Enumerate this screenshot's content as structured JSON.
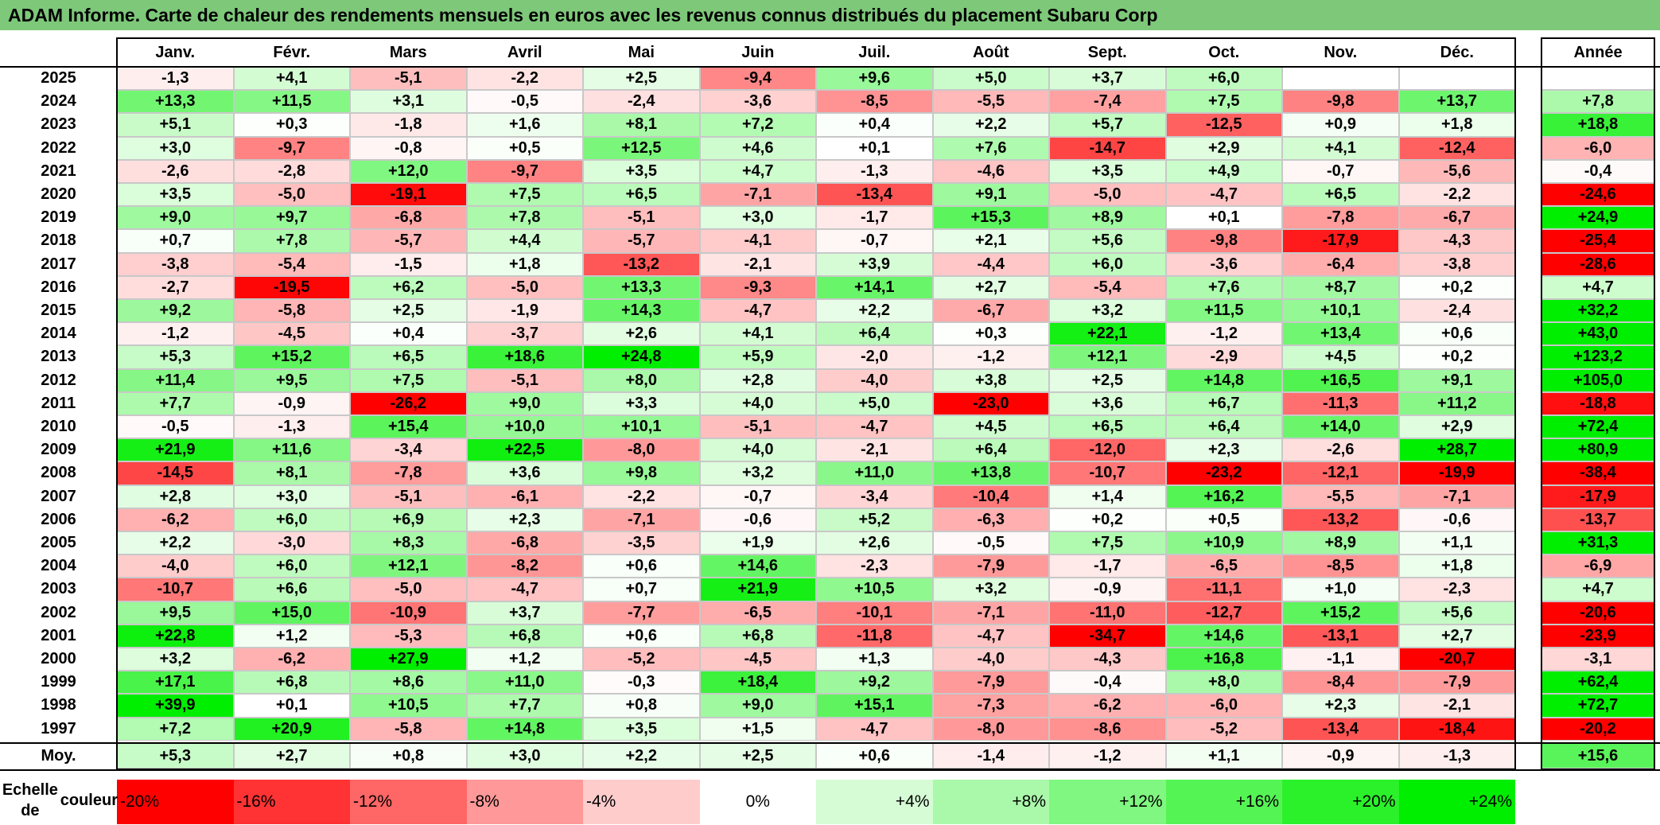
{
  "title": "ADAM Informe. Carte de chaleur des rendements mensuels en euros avec les revenus connus distribués du placement Subaru Corp",
  "chart_data": {
    "type": "heatmap",
    "months": [
      "Janv.",
      "Févr.",
      "Mars",
      "Avril",
      "Mai",
      "Juin",
      "Juil.",
      "Août",
      "Sept.",
      "Oct.",
      "Nov.",
      "Déc."
    ],
    "year_header": "Année",
    "rows": [
      {
        "year": "2025",
        "m": [
          "-1,3",
          "+4,1",
          "-5,1",
          "-2,2",
          "+2,5",
          "-9,4",
          "+9,6",
          "+5,0",
          "+3,7",
          "+6,0",
          "",
          ""
        ],
        "y": ""
      },
      {
        "year": "2024",
        "m": [
          "+13,3",
          "+11,5",
          "+3,1",
          "-0,5",
          "-2,4",
          "-3,6",
          "-8,5",
          "-5,5",
          "-7,4",
          "+7,5",
          "-9,8",
          "+13,7"
        ],
        "y": "+7,8"
      },
      {
        "year": "2023",
        "m": [
          "+5,1",
          "+0,3",
          "-1,8",
          "+1,6",
          "+8,1",
          "+7,2",
          "+0,4",
          "+2,2",
          "+5,7",
          "-12,5",
          "+0,9",
          "+1,8"
        ],
        "y": "+18,8"
      },
      {
        "year": "2022",
        "m": [
          "+3,0",
          "-9,7",
          "-0,8",
          "+0,5",
          "+12,5",
          "+4,6",
          "+0,1",
          "+7,6",
          "-14,7",
          "+2,9",
          "+4,1",
          "-12,4"
        ],
        "y": "-6,0"
      },
      {
        "year": "2021",
        "m": [
          "-2,6",
          "-2,8",
          "+12,0",
          "-9,7",
          "+3,5",
          "+4,7",
          "-1,3",
          "-4,6",
          "+3,5",
          "+4,9",
          "-0,7",
          "-5,6"
        ],
        "y": "-0,4"
      },
      {
        "year": "2020",
        "m": [
          "+3,5",
          "-5,0",
          "-19,1",
          "+7,5",
          "+6,5",
          "-7,1",
          "-13,4",
          "+9,1",
          "-5,0",
          "-4,7",
          "+6,5",
          "-2,2"
        ],
        "y": "-24,6"
      },
      {
        "year": "2019",
        "m": [
          "+9,0",
          "+9,7",
          "-6,8",
          "+7,8",
          "-5,1",
          "+3,0",
          "-1,7",
          "+15,3",
          "+8,9",
          "+0,1",
          "-7,8",
          "-6,7"
        ],
        "y": "+24,9"
      },
      {
        "year": "2018",
        "m": [
          "+0,7",
          "+7,8",
          "-5,7",
          "+4,4",
          "-5,7",
          "-4,1",
          "-0,7",
          "+2,1",
          "+5,6",
          "-9,8",
          "-17,9",
          "-4,3"
        ],
        "y": "-25,4"
      },
      {
        "year": "2017",
        "m": [
          "-3,8",
          "-5,4",
          "-1,5",
          "+1,8",
          "-13,2",
          "-2,1",
          "+3,9",
          "-4,4",
          "+6,0",
          "-3,6",
          "-6,4",
          "-3,8"
        ],
        "y": "-28,6"
      },
      {
        "year": "2016",
        "m": [
          "-2,7",
          "-19,5",
          "+6,2",
          "-5,0",
          "+13,3",
          "-9,3",
          "+14,1",
          "+2,7",
          "-5,4",
          "+7,6",
          "+8,7",
          "+0,2"
        ],
        "y": "+4,7"
      },
      {
        "year": "2015",
        "m": [
          "+9,2",
          "-5,8",
          "+2,5",
          "-1,9",
          "+14,3",
          "-4,7",
          "+2,2",
          "-6,7",
          "+3,2",
          "+11,5",
          "+10,1",
          "-2,4"
        ],
        "y": "+32,2"
      },
      {
        "year": "2014",
        "m": [
          "-1,2",
          "-4,5",
          "+0,4",
          "-3,7",
          "+2,6",
          "+4,1",
          "+6,4",
          "+0,3",
          "+22,1",
          "-1,2",
          "+13,4",
          "+0,6"
        ],
        "y": "+43,0"
      },
      {
        "year": "2013",
        "m": [
          "+5,3",
          "+15,2",
          "+6,5",
          "+18,6",
          "+24,8",
          "+5,9",
          "-2,0",
          "-1,2",
          "+12,1",
          "-2,9",
          "+4,5",
          "+0,2"
        ],
        "y": "+123,2"
      },
      {
        "year": "2012",
        "m": [
          "+11,4",
          "+9,5",
          "+7,5",
          "-5,1",
          "+8,0",
          "+2,8",
          "-4,0",
          "+3,8",
          "+2,5",
          "+14,8",
          "+16,5",
          "+9,1"
        ],
        "y": "+105,0"
      },
      {
        "year": "2011",
        "m": [
          "+7,7",
          "-0,9",
          "-26,2",
          "+9,0",
          "+3,3",
          "+4,0",
          "+5,0",
          "-23,0",
          "+3,6",
          "+6,7",
          "-11,3",
          "+11,2"
        ],
        "y": "-18,8"
      },
      {
        "year": "2010",
        "m": [
          "-0,5",
          "-1,3",
          "+15,4",
          "+10,0",
          "+10,1",
          "-5,1",
          "-4,7",
          "+4,5",
          "+6,5",
          "+6,4",
          "+14,0",
          "+2,9"
        ],
        "y": "+72,4"
      },
      {
        "year": "2009",
        "m": [
          "+21,9",
          "+11,6",
          "-3,4",
          "+22,5",
          "-8,0",
          "+4,0",
          "-2,1",
          "+6,4",
          "-12,0",
          "+2,3",
          "-2,6",
          "+28,7"
        ],
        "y": "+80,9"
      },
      {
        "year": "2008",
        "m": [
          "-14,5",
          "+8,1",
          "-7,8",
          "+3,6",
          "+9,8",
          "+3,2",
          "+11,0",
          "+13,8",
          "-10,7",
          "-23,2",
          "-12,1",
          "-19,9"
        ],
        "y": "-38,4"
      },
      {
        "year": "2007",
        "m": [
          "+2,8",
          "+3,0",
          "-5,1",
          "-6,1",
          "-2,2",
          "-0,7",
          "-3,4",
          "-10,4",
          "+1,4",
          "+16,2",
          "-5,5",
          "-7,1"
        ],
        "y": "-17,9"
      },
      {
        "year": "2006",
        "m": [
          "-6,2",
          "+6,0",
          "+6,9",
          "+2,3",
          "-7,1",
          "-0,6",
          "+5,2",
          "-6,3",
          "+0,2",
          "+0,5",
          "-13,2",
          "-0,6"
        ],
        "y": "-13,7"
      },
      {
        "year": "2005",
        "m": [
          "+2,2",
          "-3,0",
          "+8,3",
          "-6,8",
          "-3,5",
          "+1,9",
          "+2,6",
          "-0,5",
          "+7,5",
          "+10,9",
          "+8,9",
          "+1,1"
        ],
        "y": "+31,3"
      },
      {
        "year": "2004",
        "m": [
          "-4,0",
          "+6,0",
          "+12,1",
          "-8,2",
          "+0,6",
          "+14,6",
          "-2,3",
          "-7,9",
          "-1,7",
          "-6,5",
          "-8,5",
          "+1,8"
        ],
        "y": "-6,9"
      },
      {
        "year": "2003",
        "m": [
          "-10,7",
          "+6,6",
          "-5,0",
          "-4,7",
          "+0,7",
          "+21,9",
          "+10,5",
          "+3,2",
          "-0,9",
          "-11,1",
          "+1,0",
          "-2,3"
        ],
        "y": "+4,7"
      },
      {
        "year": "2002",
        "m": [
          "+9,5",
          "+15,0",
          "-10,9",
          "+3,7",
          "-7,7",
          "-6,5",
          "-10,1",
          "-7,1",
          "-11,0",
          "-12,7",
          "+15,2",
          "+5,6"
        ],
        "y": "-20,6"
      },
      {
        "year": "2001",
        "m": [
          "+22,8",
          "+1,2",
          "-5,3",
          "+6,8",
          "+0,6",
          "+6,8",
          "-11,8",
          "-4,7",
          "-34,7",
          "+14,6",
          "-13,1",
          "+2,7"
        ],
        "y": "-23,9"
      },
      {
        "year": "2000",
        "m": [
          "+3,2",
          "-6,2",
          "+27,9",
          "+1,2",
          "-5,2",
          "-4,5",
          "+1,3",
          "-4,0",
          "-4,3",
          "+16,8",
          "-1,1",
          "-20,7"
        ],
        "y": "-3,1"
      },
      {
        "year": "1999",
        "m": [
          "+17,1",
          "+6,8",
          "+8,6",
          "+11,0",
          "-0,3",
          "+18,4",
          "+9,2",
          "-7,9",
          "-0,4",
          "+8,0",
          "-8,4",
          "-7,9"
        ],
        "y": "+62,4"
      },
      {
        "year": "1998",
        "m": [
          "+39,9",
          "+0,1",
          "+10,5",
          "+7,7",
          "+0,8",
          "+9,0",
          "+15,1",
          "-7,3",
          "-6,2",
          "-6,0",
          "+2,3",
          "-2,1"
        ],
        "y": "+72,7"
      },
      {
        "year": "1997",
        "m": [
          "+7,2",
          "+20,9",
          "-5,8",
          "+14,8",
          "+3,5",
          "+1,5",
          "-4,7",
          "-8,0",
          "-8,6",
          "-5,2",
          "-13,4",
          "-18,4"
        ],
        "y": "-20,2"
      }
    ],
    "average": {
      "label": "Moy.",
      "m": [
        "+5,3",
        "+2,7",
        "+0,8",
        "+3,0",
        "+2,2",
        "+2,5",
        "+0,6",
        "-1,4",
        "-1,2",
        "+1,1",
        "-0,9",
        "-1,3"
      ],
      "y": "+15,6"
    },
    "scale": {
      "label_line1": "Echelle de",
      "label_line2": "couleur",
      "steps": [
        {
          "label": "-20%",
          "v": -20
        },
        {
          "label": "-16%",
          "v": -16
        },
        {
          "label": "-12%",
          "v": -12
        },
        {
          "label": "-8%",
          "v": -8
        },
        {
          "label": "-4%",
          "v": -4
        },
        {
          "label": "0%",
          "v": 0
        },
        {
          "label": "+4%",
          "v": 4
        },
        {
          "label": "+8%",
          "v": 8
        },
        {
          "label": "+12%",
          "v": 12
        },
        {
          "label": "+16%",
          "v": 16
        },
        {
          "label": "+20%",
          "v": 20
        },
        {
          "label": "+24%",
          "v": 24
        }
      ]
    },
    "colors": {
      "negative_max": "#ff0000",
      "neutral": "#ffffff",
      "positive_max": "#00ee00"
    }
  }
}
